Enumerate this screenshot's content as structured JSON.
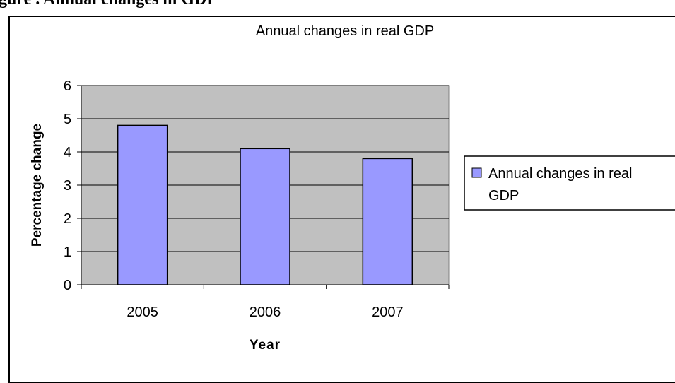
{
  "page_heading_fragment": "gure . Annual changes in GDP",
  "chart_data": {
    "type": "bar",
    "title": "Annual changes in real GDP",
    "xlabel": "Year",
    "ylabel": "Percentage change",
    "categories": [
      "2005",
      "2006",
      "2007"
    ],
    "series": [
      {
        "name": "Annual changes in real GDP",
        "values": [
          4.8,
          4.1,
          3.8
        ]
      }
    ],
    "ylim": [
      0,
      6
    ],
    "yticks": [
      "0",
      "1",
      "2",
      "3",
      "4",
      "5",
      "6"
    ],
    "grid": true,
    "legend_position": "right",
    "legend_lines": [
      "Annual changes in real",
      "GDP"
    ],
    "colors": {
      "bar": "#9999ff",
      "plot_area": "#c0c0c0",
      "gridline": "#000000"
    }
  }
}
